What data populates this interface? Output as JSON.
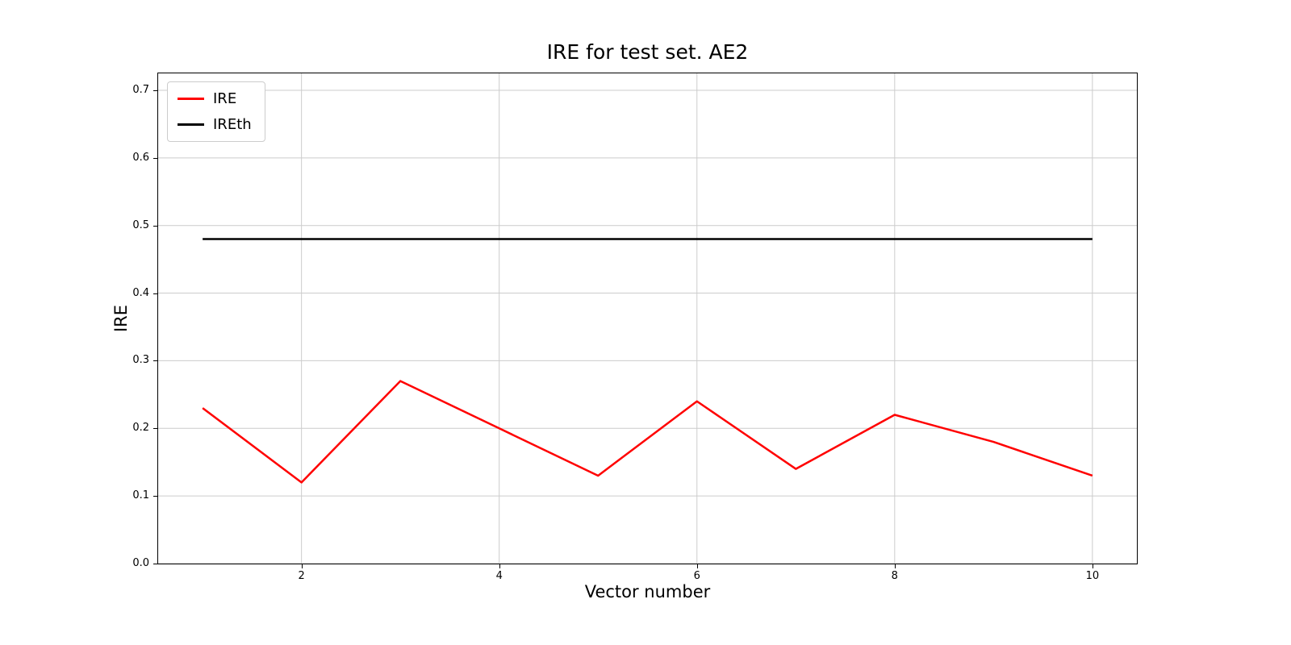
{
  "chart_data": {
    "type": "line",
    "title": "IRE for test set. AE2",
    "xlabel": "Vector number",
    "ylabel": "IRE",
    "x": [
      1,
      2,
      3,
      4,
      5,
      6,
      7,
      8,
      9,
      10
    ],
    "series": [
      {
        "name": "IRE",
        "color": "#ff0000",
        "values": [
          0.23,
          0.12,
          0.27,
          0.2,
          0.13,
          0.24,
          0.14,
          0.22,
          0.18,
          0.13
        ]
      },
      {
        "name": "IREth",
        "color": "#000000",
        "values": [
          0.48,
          0.48,
          0.48,
          0.48,
          0.48,
          0.48,
          0.48,
          0.48,
          0.48,
          0.48
        ]
      }
    ],
    "xlim": [
      0.55,
      10.45
    ],
    "ylim": [
      0,
      0.725
    ],
    "xticks": [
      2,
      4,
      6,
      8,
      10
    ],
    "xtick_labels": [
      "2",
      "4",
      "6",
      "8",
      "10"
    ],
    "yticks": [
      0.0,
      0.1,
      0.2,
      0.3,
      0.4,
      0.5,
      0.6,
      0.7
    ],
    "ytick_labels": [
      "0.0",
      "0.1",
      "0.2",
      "0.3",
      "0.4",
      "0.5",
      "0.6",
      "0.7"
    ],
    "grid": true,
    "grid_color": "#cccccc",
    "legend_position": "upper left"
  }
}
